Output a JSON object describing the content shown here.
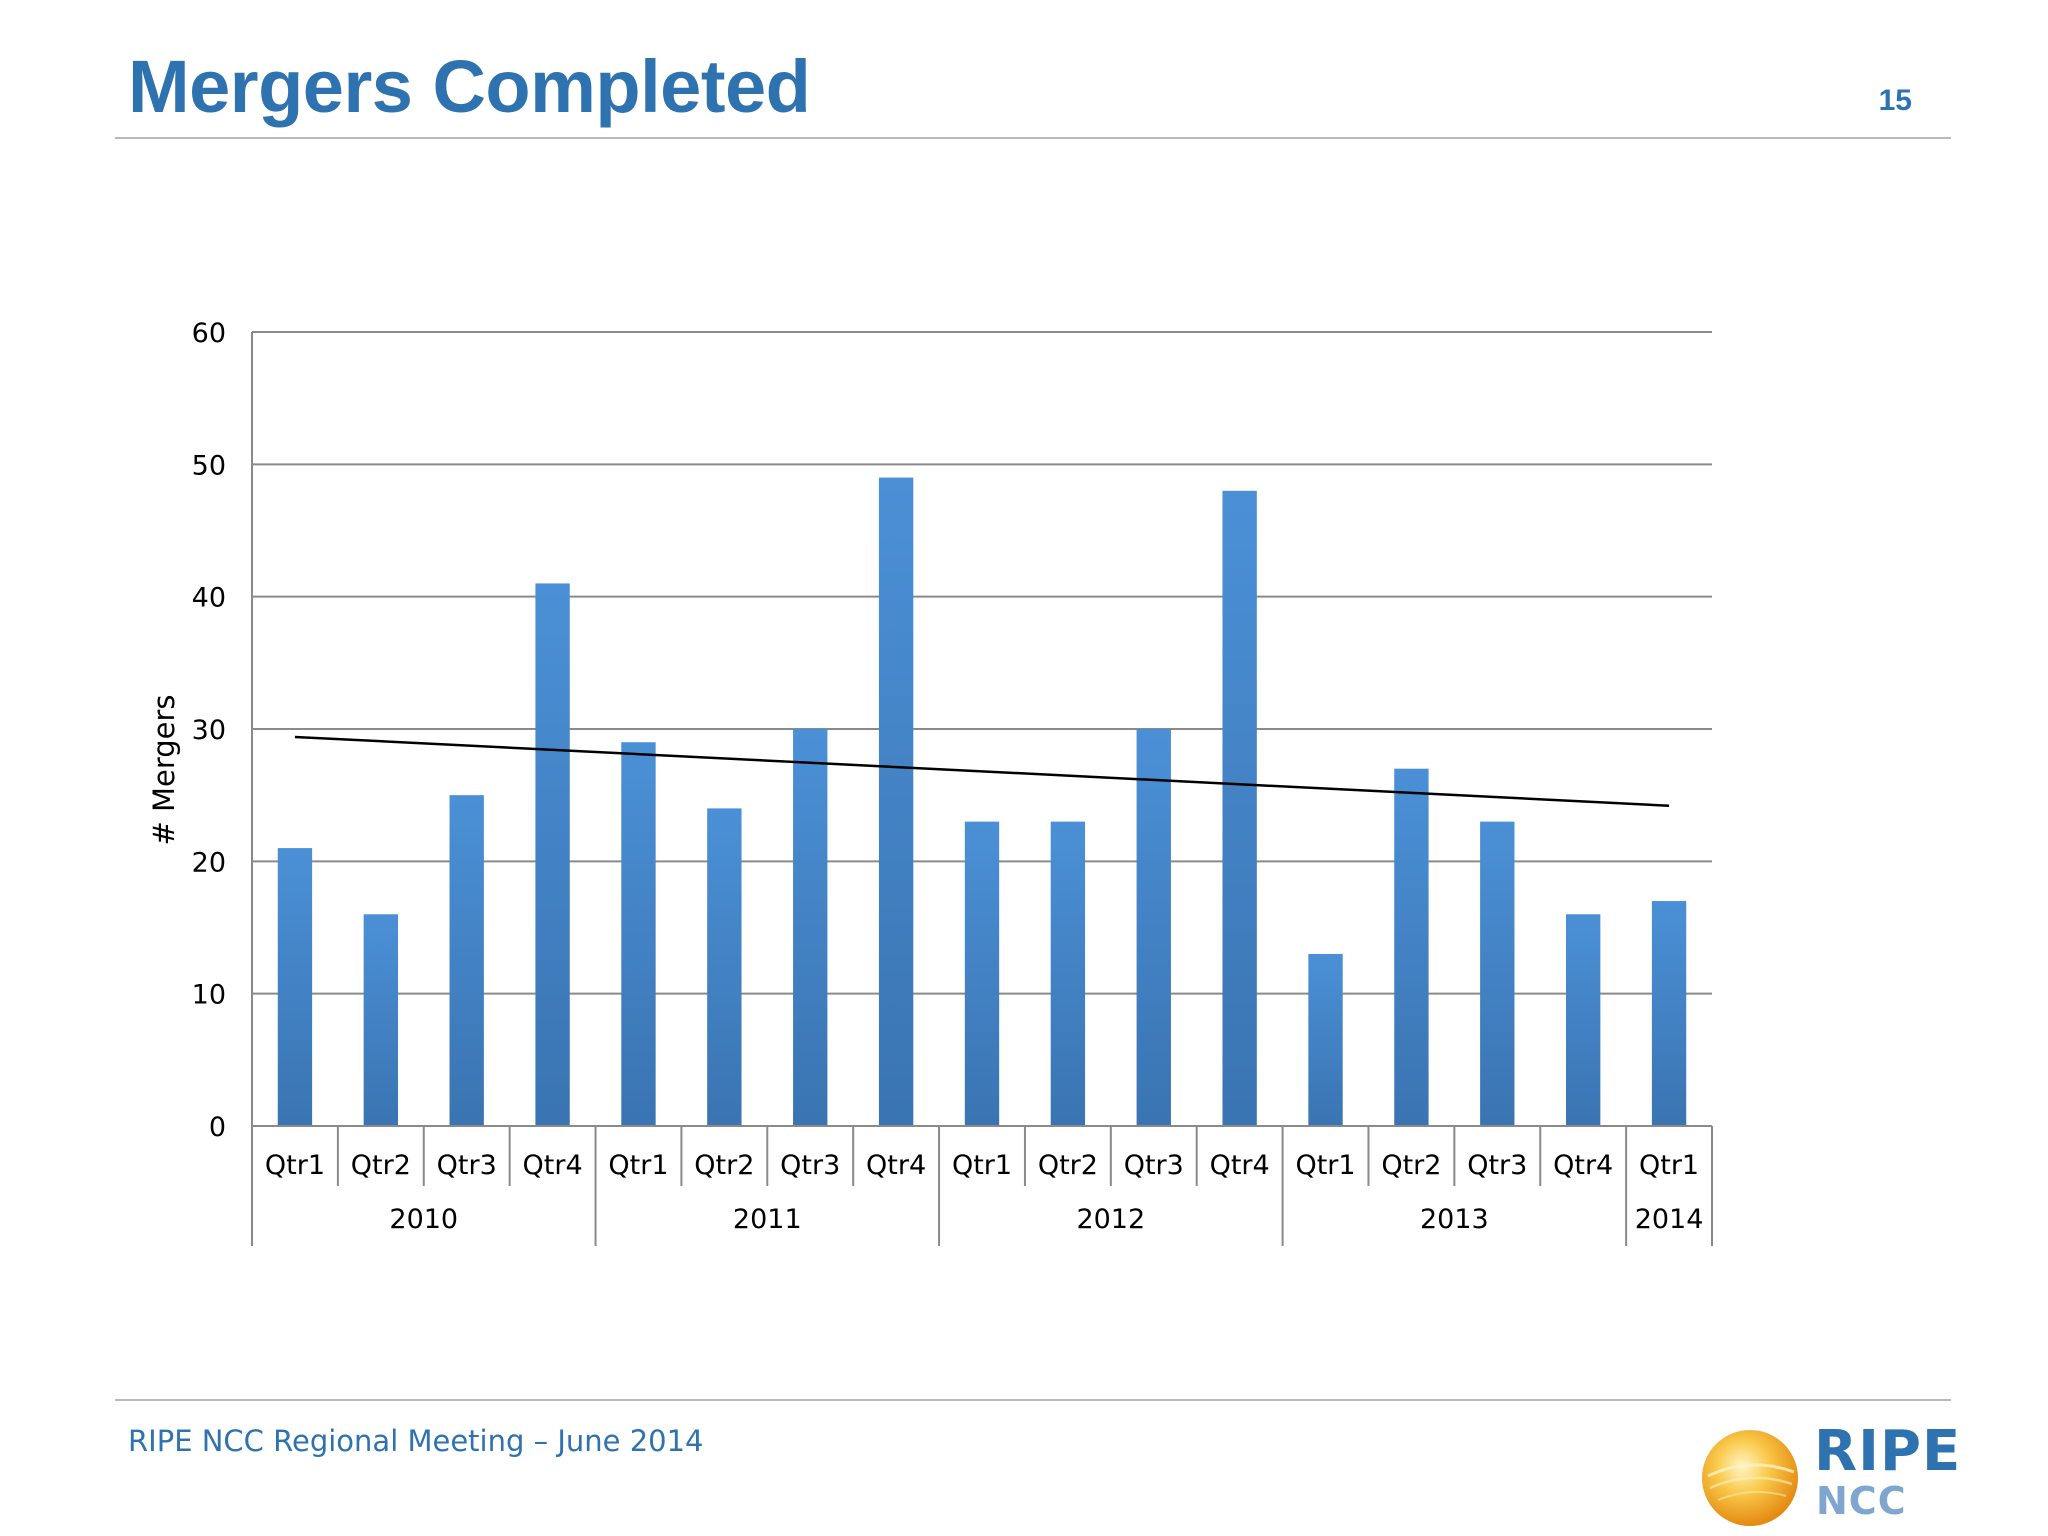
{
  "slide": {
    "title": "Mergers Completed",
    "page_number": "15",
    "footer": "RIPE NCC Regional Meeting – June 2014"
  },
  "logo": {
    "text_main": "RIPE",
    "text_sub": "NCC",
    "icon": "sun-globe-icon"
  },
  "colors": {
    "title": "#2f72b0",
    "bar_top": "#4b90d6",
    "bar_bottom": "#3a74b2",
    "trendline": "#000000",
    "grid": "#8a8a8a"
  },
  "chart_data": {
    "type": "bar",
    "title": "",
    "xlabel": "",
    "ylabel": "# Mergers",
    "ylim": [
      0,
      60
    ],
    "yticks": [
      0,
      10,
      20,
      30,
      40,
      50,
      60
    ],
    "grid": true,
    "legend": "none",
    "categories": [
      "Qtr1",
      "Qtr2",
      "Qtr3",
      "Qtr4",
      "Qtr1",
      "Qtr2",
      "Qtr3",
      "Qtr4",
      "Qtr1",
      "Qtr2",
      "Qtr3",
      "Qtr4",
      "Qtr1",
      "Qtr2",
      "Qtr3",
      "Qtr4",
      "Qtr1"
    ],
    "groups": [
      {
        "label": "2010",
        "count": 4
      },
      {
        "label": "2011",
        "count": 4
      },
      {
        "label": "2012",
        "count": 4
      },
      {
        "label": "2013",
        "count": 4
      },
      {
        "label": "2014",
        "count": 1
      }
    ],
    "values": [
      21,
      16,
      25,
      41,
      29,
      24,
      30,
      49,
      23,
      23,
      30,
      48,
      13,
      27,
      23,
      16,
      17
    ],
    "trendline": {
      "type": "linear",
      "start": 29.4,
      "end": 24.2
    }
  }
}
